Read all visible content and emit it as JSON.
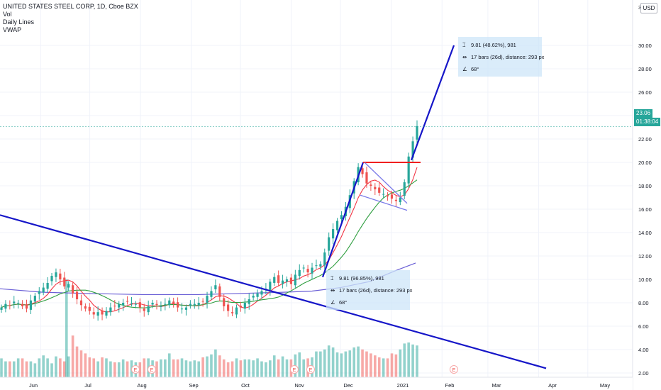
{
  "header": {
    "symbol_line": "UNITED STATES STEEL CORP, 1D, Cboe BZX",
    "indicators": [
      "Vol",
      "Daily Lines",
      "VWAP"
    ],
    "currency_button": "USD"
  },
  "price_badges": {
    "last_price": "23.06",
    "countdown": "01:38:04",
    "last_price_color": "#26a69a",
    "countdown_color": "#26a69a"
  },
  "measure_upper": {
    "price_range": "9.81 (48.62%), 981",
    "bars_range": "17 bars (26d), distance: 293 px",
    "angle": "68°"
  },
  "measure_lower": {
    "price_range": "9.81 (96.85%), 981",
    "bars_range": "17 bars (26d), distance: 293 px",
    "angle": "68°"
  },
  "icons": {
    "price_range_icon": "vertical-range-icon",
    "bars_range_icon": "horizontal-range-icon",
    "angle_icon": "angle-icon",
    "earnings_marker": "E"
  },
  "colors": {
    "up": "#26a69a",
    "down": "#ef5350",
    "trendline": "#1616c8",
    "resistance": "#f02020",
    "ma_red": "#f23645",
    "ma_green": "#2e9e3f",
    "vwap": "#6a5fd6",
    "wedge": "#7a7ae8"
  },
  "chart_data": {
    "type": "candlestick",
    "ylim": [
      1,
      31
    ],
    "y_ticks": [
      "2.00",
      "4.00",
      "6.00",
      "8.00",
      "10.00",
      "12.00",
      "14.00",
      "16.00",
      "18.00",
      "20.00",
      "22.00",
      "24.00",
      "26.00",
      "28.00",
      "30.00"
    ],
    "y_tick_values": [
      2,
      4,
      6,
      8,
      10,
      12,
      14,
      16,
      18,
      20,
      22,
      24,
      26,
      28,
      30
    ],
    "y_top_partial_label": "3",
    "x_ticks": [
      "Jun",
      "Jul",
      "Aug",
      "Sep",
      "Oct",
      "Nov",
      "Dec",
      "2021",
      "Feb",
      "Mar",
      "Apr",
      "May"
    ],
    "close_series": [
      7.6,
      7.9,
      7.8,
      8.1,
      8.0,
      7.7,
      7.5,
      8.2,
      8.6,
      9.0,
      9.3,
      9.7,
      10.3,
      10.6,
      10.0,
      9.4,
      9.6,
      8.8,
      8.3,
      7.8,
      7.5,
      7.3,
      7.0,
      7.2,
      7.0,
      7.3,
      7.6,
      7.7,
      7.9,
      8.0,
      8.1,
      8.0,
      7.9,
      7.6,
      7.3,
      7.7,
      8.0,
      7.8,
      7.7,
      7.9,
      8.2,
      7.9,
      7.6,
      7.5,
      7.6,
      7.9,
      7.9,
      8.0,
      8.1,
      8.6,
      9.0,
      9.5,
      8.5,
      7.7,
      7.3,
      7.1,
      7.6,
      7.6,
      8.0,
      8.3,
      8.6,
      8.8,
      9.0,
      9.2,
      9.8,
      10.2,
      9.7,
      9.9,
      10.0,
      9.6,
      10.4,
      10.8,
      11.0,
      10.6,
      11.0,
      11.2,
      11.3,
      12.3,
      13.6,
      14.3,
      15.0,
      15.5,
      16.2,
      17.2,
      18.4,
      19.6,
      19.0,
      18.2,
      18.0,
      17.7,
      17.4,
      17.3,
      17.1,
      16.9,
      16.7,
      17.0,
      18.3,
      20.5,
      21.8,
      23.1
    ],
    "volume": [
      1.9,
      1.6,
      1.6,
      1.6,
      1.9,
      1.9,
      1.6,
      1.6,
      1.4,
      1.9,
      2.2,
      1.9,
      1.4,
      2.1,
      1.9,
      1.6,
      2.1,
      4.2,
      3.1,
      2.7,
      2.4,
      2.0,
      1.9,
      1.6,
      2.0,
      1.9,
      1.6,
      1.5,
      1.5,
      1.8,
      1.6,
      1.7,
      1.5,
      1.5,
      1.9,
      1.9,
      1.7,
      1.6,
      1.8,
      1.8,
      2.4,
      1.8,
      1.8,
      1.9,
      1.7,
      1.6,
      1.7,
      1.6,
      2.0,
      2.1,
      2.3,
      2.8,
      2.2,
      1.8,
      1.5,
      1.6,
      1.9,
      1.7,
      1.8,
      1.8,
      1.7,
      1.9,
      1.6,
      1.5,
      1.7,
      2.2,
      1.8,
      2.1,
      1.8,
      1.8,
      2.3,
      2.5,
      1.8,
      1.9,
      2.0,
      2.6,
      2.6,
      2.8,
      3.2,
      3.0,
      2.5,
      2.4,
      2.6,
      2.7,
      3.0,
      3.1,
      2.8,
      2.6,
      2.4,
      2.2,
      2.0,
      1.9,
      1.9,
      2.4,
      2.3,
      2.8,
      3.4,
      3.5,
      3.3,
      3.2
    ],
    "date_range_days": {
      "start": "2020-05-15",
      "end": "2021-05-31"
    }
  }
}
